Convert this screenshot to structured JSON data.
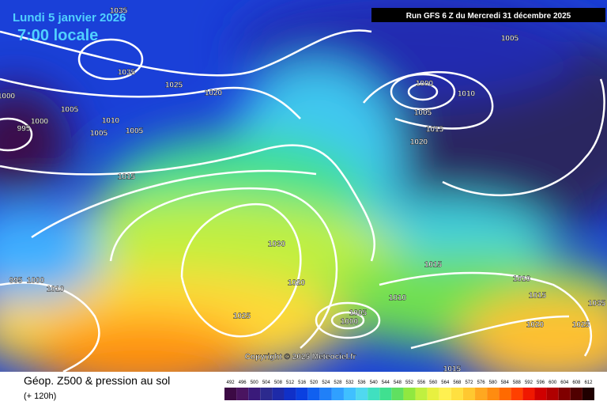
{
  "header": {
    "date": "Lundi 5 janvier 2026",
    "time": "7:00 locale",
    "run": "Run GFS 6 Z du Mercredi 31 décembre 2025"
  },
  "copyright": "Copyright © 2025 Meteociel.fr",
  "footer": {
    "title": "Géop. Z500 & pression au sol",
    "lead": "(+ 120h)"
  },
  "legend": {
    "labels": [
      492,
      496,
      500,
      504,
      508,
      512,
      516,
      520,
      524,
      528,
      532,
      536,
      540,
      544,
      548,
      552,
      556,
      560,
      564,
      568,
      572,
      576,
      580,
      584,
      588,
      592,
      596,
      600,
      604,
      608,
      612
    ],
    "colors": [
      "#3c0a44",
      "#4a1460",
      "#3a1a7a",
      "#2c2a8e",
      "#1e2aa8",
      "#1030c8",
      "#0a40e0",
      "#1060f0",
      "#2080f8",
      "#30a0ff",
      "#40c0ff",
      "#50d8f0",
      "#40e0c0",
      "#40e090",
      "#60e060",
      "#90e840",
      "#c0f040",
      "#e8f040",
      "#fff050",
      "#ffe040",
      "#ffc830",
      "#ffa820",
      "#ff8c10",
      "#ff6a00",
      "#ff4000",
      "#f01800",
      "#d00000",
      "#b00000",
      "#800000",
      "#500000",
      "#200000"
    ]
  },
  "isobars": [
    "1035",
    "1035",
    "1025",
    "1020",
    "1000",
    "1005",
    "1000",
    "1010",
    "1005",
    "1005",
    "995",
    "1015",
    "1005",
    "1000",
    "1010",
    "1005",
    "1015",
    "1020",
    "1030",
    "1015",
    "1020",
    "1010",
    "1010",
    "1015",
    "1025",
    "1005",
    "1000",
    "1020",
    "1025",
    "1035",
    "995",
    "1000",
    "1010",
    "1015"
  ]
}
